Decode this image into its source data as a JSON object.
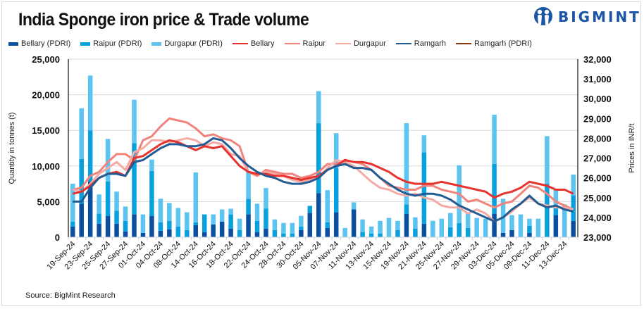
{
  "header": {
    "title": "India Sponge iron price & Trade volume",
    "brand": "BIGMINT"
  },
  "footer": {
    "source": "Source: BigMint Research"
  },
  "colors": {
    "bellary_pdri": "#0b4fa0",
    "raipur_pdri": "#08a0de",
    "durgapur_pdri": "#5bc4f0",
    "bellary": "#e8322e",
    "raipur": "#f0837b",
    "durgapur": "#f4aaa5",
    "ramgarh": "#235c92",
    "ramgarh_pdri": "#8b3a12"
  },
  "chart_data": {
    "type": "bar+line",
    "title": "India Sponge iron price & Trade volume",
    "ylabel": "Quantity in tonnes (t)",
    "y2label": "Prices in INR/t",
    "ylim": [
      0,
      25000
    ],
    "y2lim": [
      23000,
      32000
    ],
    "yticks": [
      "0",
      "5,000",
      "10,000",
      "15,000",
      "20,000",
      "25,000"
    ],
    "y2ticks": [
      "23,000",
      "24,000",
      "25,000",
      "26,000",
      "27,000",
      "28,000",
      "29,000",
      "30,000",
      "31,000",
      "32,000"
    ],
    "grid": true,
    "legend_position": "top",
    "categories": [
      "19-Sep-24",
      "20-Sep-24",
      "23-Sep-24",
      "24-Sep-24",
      "25-Sep-24",
      "26-Sep-24",
      "27-Sep-24",
      "30-Sep-24",
      "01-Oct-24",
      "03-Oct-24",
      "04-Oct-24",
      "07-Oct-24",
      "08-Oct-24",
      "11-Oct-24",
      "14-Oct-24",
      "15-Oct-24",
      "16-Oct-24",
      "17-Oct-24",
      "18-Oct-24",
      "21-Oct-24",
      "22-Oct-24",
      "23-Oct-24",
      "24-Oct-24",
      "25-Oct-24",
      "28-Oct-24",
      "29-Oct-24",
      "30-Oct-24",
      "04-Nov-24",
      "05-Nov-24",
      "06-Nov-24",
      "07-Nov-24",
      "08-Nov-24",
      "11-Nov-24",
      "12-Nov-24",
      "13-Nov-24",
      "14-Nov-24",
      "15-Nov-24",
      "18-Nov-24",
      "19-Nov-24",
      "20-Nov-24",
      "21-Nov-24",
      "22-Nov-24",
      "25-Nov-24",
      "26-Nov-24",
      "27-Nov-24",
      "28-Nov-24",
      "29-Nov-24",
      "02-Dec-24",
      "03-Dec-24",
      "04-Dec-24",
      "05-Dec-24",
      "06-Dec-24",
      "09-Dec-24",
      "10-Dec-24",
      "11-Dec-24",
      "12-Dec-24",
      "13-Dec-24",
      "16-Dec-24"
    ],
    "tick_labels": [
      "19-Sep-24",
      "23-Sep-24",
      "25-Sep-24",
      "27-Sep-24",
      "01-Oct-24",
      "04-Oct-24",
      "08-Oct-24",
      "14-Oct-24",
      "16-Oct-24",
      "18-Oct-24",
      "22-Oct-24",
      "24-Oct-24",
      "28-Oct-24",
      "30-Oct-24",
      "05-Nov-24",
      "07-Nov-24",
      "11-Nov-24",
      "13-Nov-24",
      "15-Nov-24",
      "19-Nov-24",
      "21-Nov-24",
      "25-Nov-24",
      "27-Nov-24",
      "29-Nov-24",
      "03-Dec-24",
      "05-Dec-24",
      "09-Dec-24",
      "11-Dec-24",
      "13-Dec-24"
    ],
    "bar_series": [
      {
        "name": "Bellary (PDRI)",
        "color_key": "bellary_pdri",
        "axis": "left",
        "values": [
          1500,
          4700,
          7800,
          1900,
          3000,
          1900,
          800,
          3200,
          600,
          3000,
          900,
          1100,
          0,
          0,
          1700,
          700,
          1800,
          2200,
          1200,
          0,
          3200,
          700,
          1200,
          0,
          0,
          0,
          1000,
          3400,
          6200,
          1300,
          3500,
          0,
          3900,
          0,
          0,
          0,
          0,
          0,
          3300,
          0,
          1900,
          0,
          0,
          0,
          0,
          0,
          0,
          0,
          3300,
          600,
          1000,
          0,
          600,
          0,
          0,
          3100,
          0,
          2300
        ]
      },
      {
        "name": "Raipur (PDRI)",
        "color_key": "raipur_pdri",
        "axis": "left",
        "values": [
          700,
          6300,
          7200,
          1400,
          4800,
          1800,
          1500,
          10000,
          0,
          6300,
          1200,
          1200,
          1500,
          1000,
          400,
          2500,
          0,
          0,
          2000,
          1000,
          2200,
          1600,
          2800,
          1000,
          500,
          500,
          500,
          1000,
          9800,
          800,
          6300,
          0,
          0,
          700,
          500,
          500,
          0,
          1000,
          1300,
          1200,
          10000,
          0,
          0,
          1400,
          2000,
          1300,
          0,
          0,
          7000,
          0,
          0,
          0,
          1000,
          0,
          7500,
          1300,
          0,
          3600
        ]
      },
      {
        "name": "Durgapur (PDRI)",
        "color_key": "durgapur_pdri",
        "axis": "left",
        "values": [
          5300,
          7100,
          7700,
          2700,
          6000,
          2700,
          2000,
          6100,
          2600,
          1600,
          3300,
          2500,
          2600,
          2500,
          7000,
          0,
          1400,
          1700,
          800,
          1600,
          3800,
          2400,
          2900,
          1500,
          1500,
          1500,
          1500,
          0,
          4500,
          4500,
          4800,
          1300,
          1000,
          1800,
          1000,
          1800,
          2700,
          1300,
          11400,
          1600,
          2400,
          2300,
          2600,
          2000,
          8100,
          2200,
          2700,
          2600,
          6900,
          4800,
          2100,
          3200,
          1000,
          2600,
          6700,
          2400,
          4600,
          2900
        ]
      }
    ],
    "line_series": [
      {
        "name": "Bellary",
        "color_key": "bellary",
        "axis": "right",
        "values": [
          25200,
          25300,
          25600,
          26000,
          26200,
          26300,
          26100,
          27000,
          27100,
          27400,
          27700,
          27900,
          27800,
          27600,
          27400,
          27600,
          27500,
          27600,
          27100,
          26600,
          26300,
          26200,
          26200,
          26100,
          26100,
          26000,
          25900,
          26000,
          26100,
          26400,
          26600,
          26900,
          26800,
          26800,
          26700,
          26500,
          26300,
          26000,
          25800,
          25700,
          25700,
          25700,
          25800,
          25700,
          25600,
          25500,
          25400,
          25300,
          25000,
          25200,
          25300,
          25500,
          25800,
          25700,
          25600,
          25400,
          25400,
          25200
        ]
      },
      {
        "name": "Raipur",
        "color_key": "raipur",
        "axis": "right",
        "values": [
          25400,
          25500,
          26100,
          26300,
          26800,
          27200,
          27200,
          26900,
          27900,
          28100,
          28600,
          29000,
          28900,
          28800,
          28500,
          28100,
          28200,
          28000,
          27900,
          27600,
          26300,
          26100,
          26400,
          26300,
          26200,
          26200,
          26000,
          26100,
          26300,
          26700,
          26700,
          26900,
          26800,
          26700,
          26400,
          26000,
          25600,
          25500,
          25400,
          25400,
          25600,
          25600,
          25400,
          25300,
          25200,
          24800,
          24900,
          24700,
          24500,
          24700,
          24800,
          25200,
          25600,
          25500,
          25200,
          24800,
          24600,
          24400
        ]
      },
      {
        "name": "Durgapur",
        "color_key": "durgapur",
        "axis": "right",
        "values": [
          25400,
          25300,
          25700,
          26200,
          26500,
          26800,
          26400,
          27300,
          27500,
          27900,
          27900,
          27800,
          27900,
          28000,
          27900,
          27600,
          27800,
          27700,
          27200,
          27100,
          26300,
          26200,
          26300,
          26200,
          26100,
          25900,
          25800,
          25900,
          26000,
          26500,
          26900,
          26800,
          26600,
          26200,
          25800,
          25500,
          25400,
          25200,
          25100,
          25200,
          25000,
          24900,
          24600,
          24500,
          24500,
          24200,
          24400,
          24200,
          23800,
          24000,
          24300,
          24700,
          25000,
          24700,
          24600,
          24500,
          24500,
          24400
        ]
      },
      {
        "name": "Ramgarh",
        "color_key": "ramgarh",
        "axis": "right",
        "values": [
          24800,
          24800,
          25500,
          26000,
          26200,
          26200,
          26100,
          26800,
          26900,
          27200,
          27500,
          27700,
          27700,
          27600,
          27600,
          27700,
          28000,
          27900,
          27500,
          27000,
          26600,
          26300,
          26100,
          26000,
          25800,
          25700,
          25700,
          25800,
          26000,
          26400,
          26600,
          26700,
          26500,
          26500,
          26400,
          26000,
          25700,
          25400,
          25200,
          25100,
          25200,
          25200,
          25100,
          24900,
          24600,
          24400,
          24200,
          24000,
          23800,
          24000,
          24400,
          24700,
          25100,
          24700,
          24500,
          24600,
          24400,
          24300
        ]
      },
      {
        "name": "Ramgarh (PDRI)",
        "color_key": "ramgarh_pdri",
        "axis": "right",
        "values": []
      }
    ]
  },
  "legend": [
    {
      "label": "Bellary (PDRI)",
      "kind": "bar",
      "color_key": "bellary_pdri"
    },
    {
      "label": "Raipur (PDRI)",
      "kind": "bar",
      "color_key": "raipur_pdri"
    },
    {
      "label": "Durgapur (PDRI)",
      "kind": "bar",
      "color_key": "durgapur_pdri"
    },
    {
      "label": "Bellary",
      "kind": "line",
      "color_key": "bellary"
    },
    {
      "label": "Raipur",
      "kind": "line",
      "color_key": "raipur"
    },
    {
      "label": "Durgapur",
      "kind": "line",
      "color_key": "durgapur"
    },
    {
      "label": "Ramgarh",
      "kind": "line",
      "color_key": "ramgarh"
    },
    {
      "label": "Ramgarh (PDRI)",
      "kind": "line",
      "color_key": "ramgarh_pdri"
    }
  ]
}
